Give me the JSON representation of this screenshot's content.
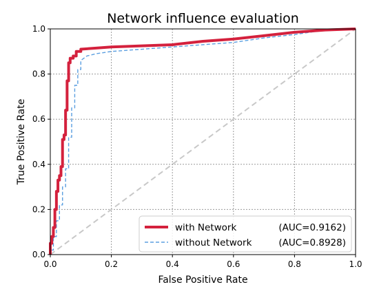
{
  "chart_data": {
    "type": "line",
    "title": "Network influence evaluation",
    "xlabel": "False Positive Rate",
    "ylabel": "True Positive Rate",
    "xlim": [
      0,
      1
    ],
    "ylim": [
      0,
      1
    ],
    "xticks": [
      "0.0",
      "0.2",
      "0.4",
      "0.6",
      "0.8",
      "1.0"
    ],
    "yticks": [
      "0.0",
      "0.2",
      "0.4",
      "0.6",
      "0.8",
      "1.0"
    ],
    "grid": true,
    "legend_position": "lower-right",
    "series": [
      {
        "name": "with Network",
        "auc_label": "(AUC=0.9162)",
        "color": "#d4213d",
        "style": "solid",
        "x": [
          0.0,
          0.0,
          0.005,
          0.005,
          0.01,
          0.01,
          0.015,
          0.015,
          0.02,
          0.02,
          0.025,
          0.025,
          0.03,
          0.03,
          0.035,
          0.035,
          0.04,
          0.04,
          0.045,
          0.045,
          0.05,
          0.05,
          0.055,
          0.055,
          0.06,
          0.06,
          0.065,
          0.065,
          0.075,
          0.075,
          0.085,
          0.085,
          0.1,
          0.1,
          0.15,
          0.2,
          0.3,
          0.4,
          0.5,
          0.6,
          0.7,
          0.8,
          0.9,
          1.0
        ],
        "y": [
          0.0,
          0.05,
          0.05,
          0.08,
          0.08,
          0.12,
          0.12,
          0.2,
          0.2,
          0.28,
          0.28,
          0.33,
          0.33,
          0.35,
          0.35,
          0.39,
          0.39,
          0.51,
          0.51,
          0.53,
          0.53,
          0.64,
          0.64,
          0.77,
          0.77,
          0.85,
          0.85,
          0.87,
          0.87,
          0.88,
          0.88,
          0.9,
          0.9,
          0.91,
          0.915,
          0.92,
          0.925,
          0.93,
          0.945,
          0.955,
          0.97,
          0.985,
          0.995,
          1.0
        ]
      },
      {
        "name": "without Network",
        "auc_label": "(AUC=0.8928)",
        "color": "#5a9ee0",
        "style": "dashed",
        "x": [
          0.0,
          0.0,
          0.01,
          0.01,
          0.02,
          0.02,
          0.03,
          0.03,
          0.04,
          0.04,
          0.05,
          0.05,
          0.06,
          0.06,
          0.07,
          0.07,
          0.08,
          0.08,
          0.09,
          0.09,
          0.1,
          0.1,
          0.12,
          0.15,
          0.2,
          0.3,
          0.4,
          0.5,
          0.6,
          0.7,
          0.8,
          0.85,
          0.9,
          1.0
        ],
        "y": [
          0.0,
          0.02,
          0.02,
          0.08,
          0.08,
          0.15,
          0.15,
          0.22,
          0.22,
          0.3,
          0.3,
          0.38,
          0.38,
          0.52,
          0.52,
          0.65,
          0.65,
          0.75,
          0.75,
          0.82,
          0.82,
          0.86,
          0.88,
          0.89,
          0.9,
          0.91,
          0.92,
          0.93,
          0.94,
          0.96,
          0.975,
          0.985,
          0.995,
          1.0
        ]
      },
      {
        "name": "",
        "color": "#c8c8c8",
        "style": "dashed",
        "x": [
          0.0,
          1.0
        ],
        "y": [
          0.0,
          1.0
        ]
      }
    ]
  }
}
